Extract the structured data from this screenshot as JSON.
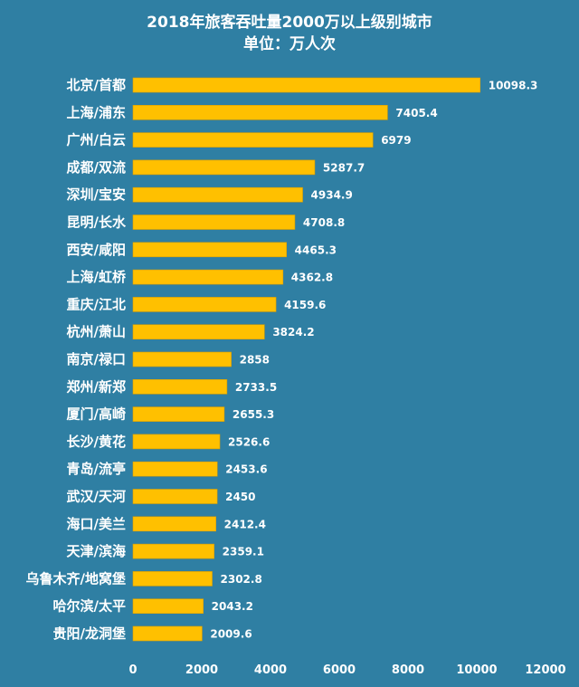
{
  "chart_data": {
    "type": "bar",
    "orientation": "horizontal",
    "title": "2018年旅客吞吐量2000万以上级别城市",
    "subtitle": "单位：万人次",
    "categories": [
      "北京/首都",
      "上海/浦东",
      "广州/白云",
      "成都/双流",
      "深圳/宝安",
      "昆明/长水",
      "西安/咸阳",
      "上海/虹桥",
      "重庆/江北",
      "杭州/萧山",
      "南京/禄口",
      "郑州/新郑",
      "厦门/高崎",
      "长沙/黄花",
      "青岛/流亭",
      "武汉/天河",
      "海口/美兰",
      "天津/滨海",
      "乌鲁木齐/地窝堡",
      "哈尔滨/太平",
      "贵阳/龙洞堡"
    ],
    "values": [
      10098.3,
      7405.4,
      6979,
      5287.7,
      4934.9,
      4708.8,
      4465.3,
      4362.8,
      4159.6,
      3824.2,
      2858,
      2733.5,
      2655.3,
      2526.6,
      2453.6,
      2450,
      2412.4,
      2359.1,
      2302.8,
      2043.2,
      2009.6
    ],
    "value_labels": [
      "10098.3",
      "7405.4",
      "6979",
      "5287.7",
      "4934.9",
      "4708.8",
      "4465.3",
      "4362.8",
      "4159.6",
      "3824.2",
      "2858",
      "2733.5",
      "2655.3",
      "2526.6",
      "2453.6",
      "2450",
      "2412.4",
      "2359.1",
      "2302.8",
      "2043.2",
      "2009.6"
    ],
    "xlim": [
      0,
      12000
    ],
    "xticks": [
      0,
      2000,
      4000,
      6000,
      8000,
      10000,
      12000
    ],
    "xtick_labels": [
      "0",
      "2000",
      "4000",
      "6000",
      "8000",
      "10000",
      "12000"
    ],
    "grid": false,
    "legend": "none",
    "colors": {
      "background": "#2f7fa3",
      "bar": "#ffc000",
      "text": "#ffffff"
    }
  }
}
